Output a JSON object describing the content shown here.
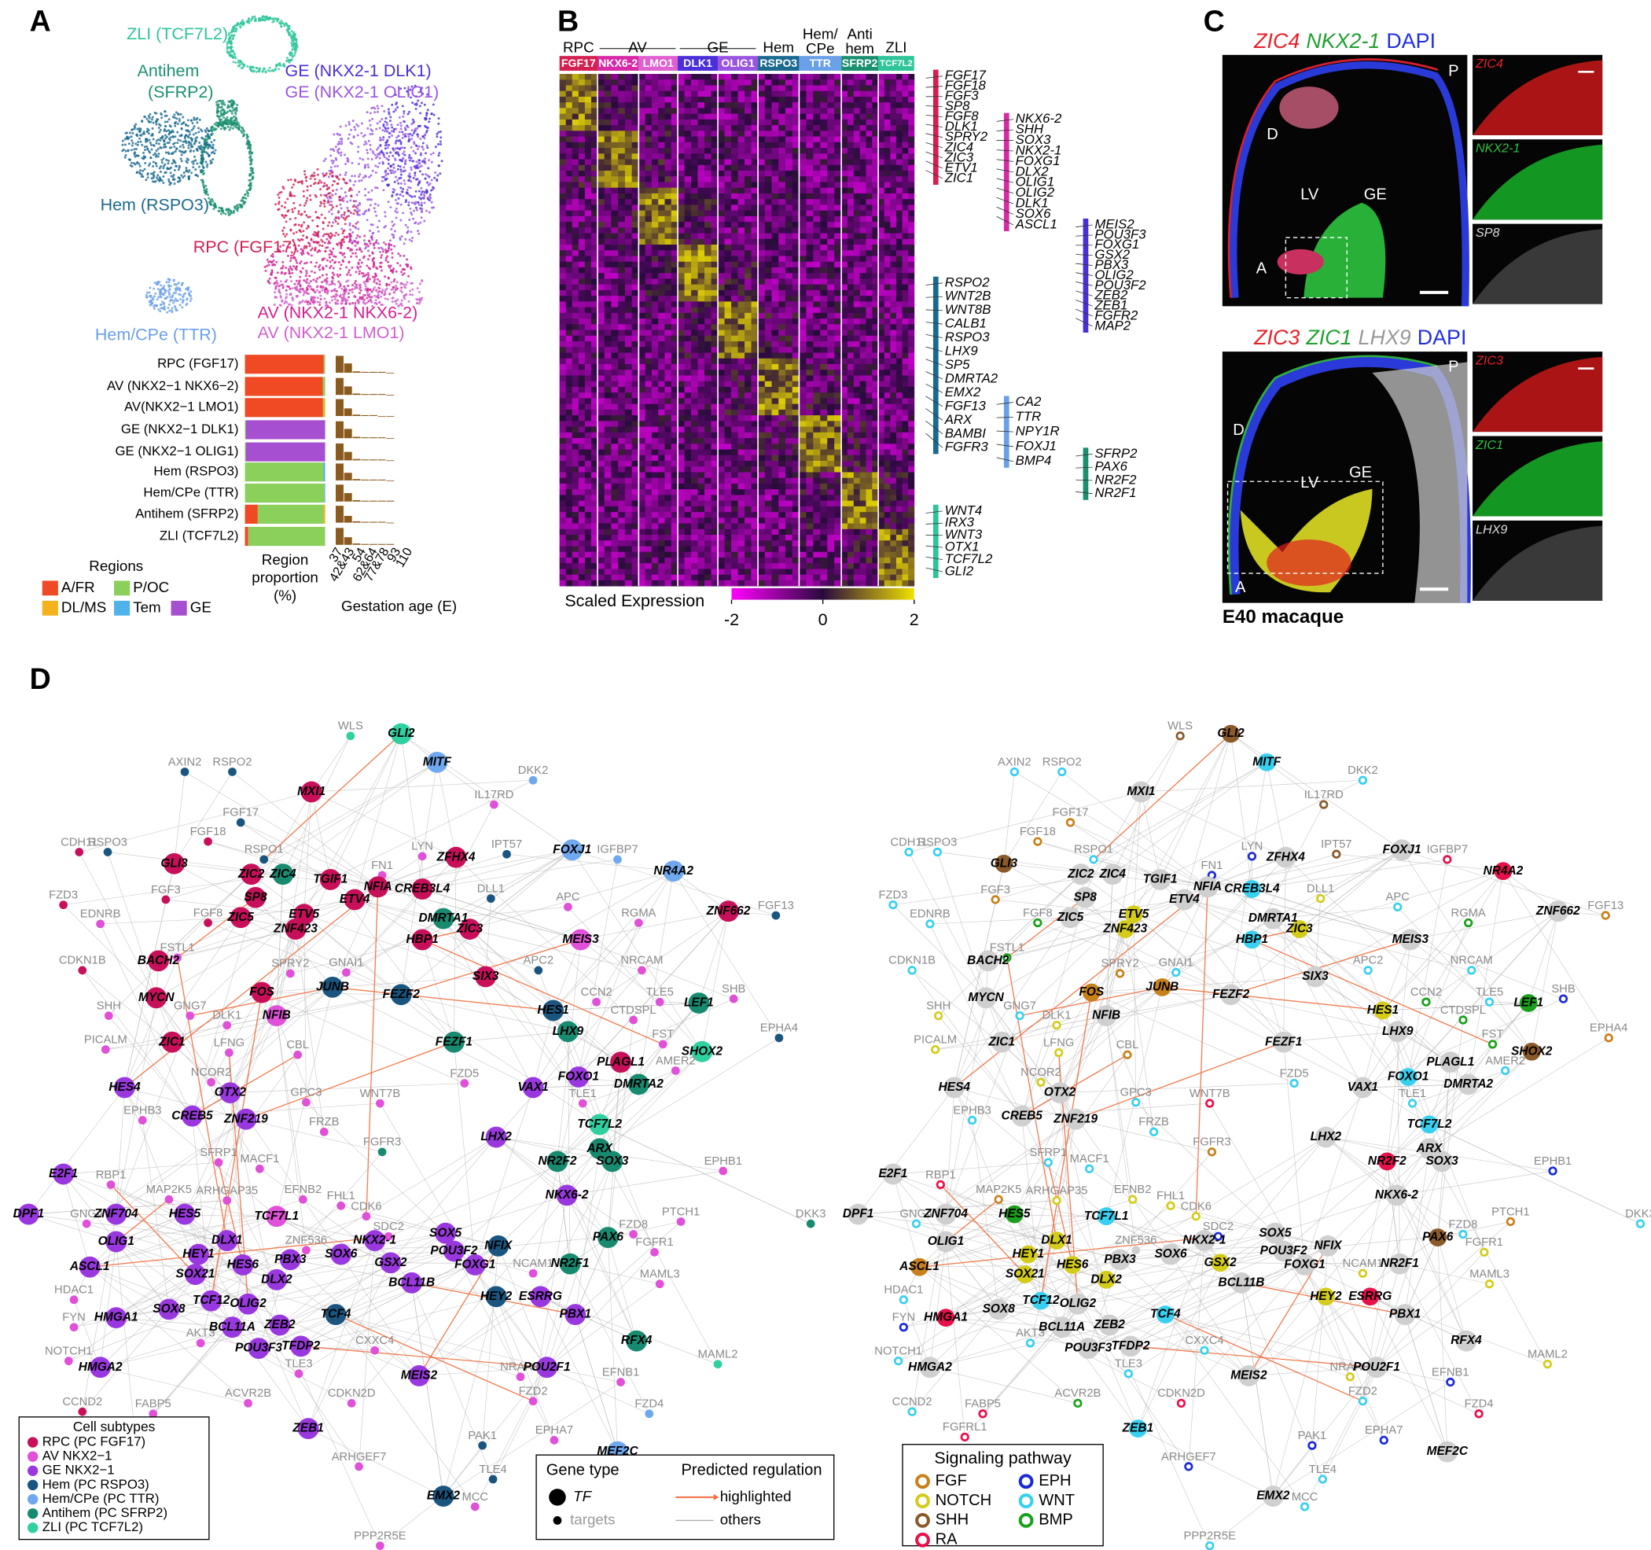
{
  "panel_labels": [
    "A",
    "B",
    "C",
    "D"
  ],
  "panel_a": {
    "umap_labels": [
      {
        "text": "ZLI (TCF7L2)",
        "color": "#2ec59a"
      },
      {
        "text": "Antihem",
        "color": "#1a9070"
      },
      {
        "text": "(SFRP2)",
        "color": "#1a9070"
      },
      {
        "text": "GE (NKX2-1 DLK1)",
        "color": "#4b2fd8"
      },
      {
        "text": "GE (NKX2-1 OLIG1)",
        "color": "#9a55e0"
      },
      {
        "text": "Hem (RSPO3)",
        "color": "#1a6a90"
      },
      {
        "text": "RPC (FGF17)",
        "color": "#d02050"
      },
      {
        "text": "Hem/CPe (TTR)",
        "color": "#6aa0e8"
      },
      {
        "text": "AV (NKX2-1 NKX6-2)",
        "color": "#d02090"
      },
      {
        "text": "AV (NKX2-1 LMO1)",
        "color": "#d060d0"
      }
    ],
    "region_chart": {
      "type": "bar",
      "categories": [
        "RPC (FGF17)",
        "AV (NKX2−1 NKX6−2)",
        "AV(NKX2−1 LMO1)",
        "GE (NKX2−1 DLK1)",
        "GE (NKX2−1 OLIG1)",
        "Hem (RSPO3)",
        "Hem/CPe (TTR)",
        "Antihem (SFRP2)",
        "ZLI (TCF7L2)"
      ],
      "series": [
        {
          "name": "A/FR",
          "color": "#f04a24",
          "values": [
            98,
            97,
            97,
            0,
            0,
            0,
            0,
            16,
            4
          ]
        },
        {
          "name": "P/OC",
          "color": "#8bd05b",
          "values": [
            2,
            3,
            1,
            1,
            1,
            98,
            99,
            82,
            96
          ]
        },
        {
          "name": "DL/MS",
          "color": "#f5b21c",
          "values": [
            0,
            0,
            2,
            0,
            0,
            0,
            0,
            2,
            0
          ]
        },
        {
          "name": "Tem",
          "color": "#4fb2e8",
          "values": [
            0,
            0,
            0,
            0,
            0,
            2,
            1,
            0,
            0
          ]
        },
        {
          "name": "GE",
          "color": "#a64fd0",
          "values": [
            0,
            0,
            0,
            99,
            99,
            0,
            0,
            0,
            0
          ]
        }
      ],
      "xlim": [
        0,
        100
      ],
      "legend_title": "Regions",
      "xlabel": [
        "Region",
        "proportion",
        "(%)"
      ]
    },
    "age_chart": {
      "type": "bar",
      "color": "#8b5a1e",
      "categories": [
        "37",
        "42&43",
        "54",
        "62&64",
        "77&78",
        "93",
        "110"
      ],
      "ylim": [
        0,
        1
      ],
      "values": [
        [
          1,
          0.55,
          0.08,
          0.05,
          0.05,
          0.05,
          0
        ],
        [
          1,
          0.5,
          0.08,
          0.05,
          0.05,
          0.05,
          0
        ],
        [
          1,
          0.45,
          0.08,
          0.05,
          0.05,
          0,
          0
        ],
        [
          1,
          0.55,
          0.08,
          0.05,
          0.05,
          0.05,
          0
        ],
        [
          1,
          0.5,
          0.08,
          0.05,
          0.05,
          0.05,
          0
        ],
        [
          1,
          0.45,
          0.08,
          0.05,
          0.05,
          0.05,
          0
        ],
        [
          1,
          0.5,
          0.08,
          0.05,
          0.05,
          0.05,
          0.05
        ],
        [
          1,
          0.4,
          0.08,
          0.05,
          0.05,
          0.05,
          0
        ],
        [
          1,
          0.45,
          0.08,
          0.05,
          0.05,
          0.05,
          0.05
        ]
      ],
      "xlabel": "Gestation age (E)"
    }
  },
  "panel_b": {
    "group_headers": [
      [
        "RPC"
      ],
      [
        "AV"
      ],
      [
        "GE"
      ],
      [
        "Hem"
      ],
      [
        "Hem/",
        "CPe"
      ],
      [
        "Anti",
        "hem"
      ],
      [
        "ZLI"
      ]
    ],
    "clusters": [
      {
        "label": "FGF17",
        "color": "#d42050"
      },
      {
        "label": "NKX6-2",
        "color": "#d62aa6"
      },
      {
        "label": "LMO1",
        "color": "#e060d0"
      },
      {
        "label": "DLK1",
        "color": "#4b2fd8"
      },
      {
        "label": "OLIG1",
        "color": "#9a55e0"
      },
      {
        "label": "RSPO3",
        "color": "#1a6a90"
      },
      {
        "label": "TTR",
        "color": "#6aa0e8"
      },
      {
        "label": "SFRP2",
        "color": "#1a9070"
      },
      {
        "label": "TCF7L2",
        "color": "#2ec59a"
      }
    ],
    "colorbar": {
      "label": "Scaled Expression",
      "lim": [
        -2,
        2
      ],
      "ticks": [
        -2,
        0,
        2
      ]
    },
    "gene_groups": [
      {
        "color": "#d42050",
        "genes": [
          "FGF17",
          "FGF18",
          "FGF3",
          "SP8",
          "FGF8",
          "DLK1",
          "SPRY2",
          "ZIC4",
          "ZIC3",
          "ETV1",
          "ZIC1"
        ]
      },
      {
        "color": "#d62aa6",
        "genes": [
          "NKX6-2",
          "SHH",
          "SOX3",
          "NKX2-1",
          "FOXG1",
          "DLX2",
          "OLIG1",
          "OLIG2",
          "DLK1",
          "SOX6",
          "ASCL1"
        ]
      },
      {
        "color": "#4b2fd8",
        "genes": [
          "MEIS2",
          "POU3F3",
          "FOXG1",
          "GSX2",
          "PBX3",
          "OLIG2",
          "POU3F2",
          "ZEB2",
          "ZEB1",
          "FGFR2",
          "MAP2"
        ]
      },
      {
        "color": "#1a6a90",
        "genes": [
          "RSPO2",
          "WNT2B",
          "WNT8B",
          "CALB1",
          "RSPO3",
          "LHX9",
          "SP5",
          "DMRTA2",
          "EMX2",
          "FGF13",
          "ARX",
          "BAMBI",
          "FGFR3"
        ]
      },
      {
        "color": "#6aa0e8",
        "genes": [
          "CA2",
          "TTR",
          "NPY1R",
          "FOXJ1",
          "BMP4"
        ]
      },
      {
        "color": "#1a9070",
        "genes": [
          "SFRP2",
          "PAX6",
          "NR2F2",
          "NR2F1"
        ]
      },
      {
        "color": "#2ec59a",
        "genes": [
          "WNT4",
          "IRX3",
          "WNT3",
          "OTX1",
          "TCF7L2",
          "GLI2"
        ]
      }
    ]
  },
  "panel_c": {
    "top": {
      "title_parts": [
        {
          "text": "ZIC4",
          "color": "#e8202a"
        },
        {
          "text": "NKX2-1",
          "color": "#20a030"
        },
        {
          "text": "DAPI",
          "color": "#2030e0"
        }
      ],
      "region_labels": [
        "D",
        "P",
        "LV",
        "GE",
        "A"
      ],
      "insets": [
        {
          "text": "ZIC4",
          "color": "#e8202a"
        },
        {
          "text": "NKX2-1",
          "color": "#30c040"
        },
        {
          "text": "SP8",
          "color": "#dddddd"
        }
      ]
    },
    "bottom": {
      "title_parts": [
        {
          "text": "ZIC3",
          "color": "#e8202a"
        },
        {
          "text": "ZIC1",
          "color": "#20a030"
        },
        {
          "text": "LHX9",
          "color": "#999999"
        },
        {
          "text": "DAPI",
          "color": "#2030e0"
        }
      ],
      "region_labels": [
        "D",
        "P",
        "LV",
        "GE",
        "A"
      ],
      "insets": [
        {
          "text": "ZIC3",
          "color": "#e8202a"
        },
        {
          "text": "ZIC1",
          "color": "#30c040"
        },
        {
          "text": "LHX9",
          "color": "#dddddd"
        }
      ]
    },
    "caption": "E40 macaque"
  },
  "panel_d": {
    "cell_subtypes": {
      "title": "Cell subtypes",
      "items": [
        {
          "label": "RPC (PC FGF17)",
          "color": "#c8105a"
        },
        {
          "label": "AV NKX2−1",
          "color": "#e050d8"
        },
        {
          "label": "GE NKX2−1",
          "color": "#9a38e0"
        },
        {
          "label": "Hem (PC RSPO3)",
          "color": "#1a5580"
        },
        {
          "label": "Hem/CPe (PC TTR)",
          "color": "#70a8f0"
        },
        {
          "label": "Antihem (PC SFRP2)",
          "color": "#188a70"
        },
        {
          "label": "ZLI (PC TCF7L2)",
          "color": "#30d0a0"
        }
      ]
    },
    "gene_type": {
      "title": "Gene type",
      "items": [
        "TF",
        "targets"
      ]
    },
    "regulation": {
      "title": "Predicted regulation",
      "items": [
        "highlighted",
        "others"
      ]
    },
    "pathways": {
      "title": "Signaling pathway",
      "items": [
        {
          "label": "FGF",
          "color": "#c8801a"
        },
        {
          "label": "NOTCH",
          "color": "#d4cc1a"
        },
        {
          "label": "SHH",
          "color": "#8a5a2a"
        },
        {
          "label": "RA",
          "color": "#e8104a"
        },
        {
          "label": "EPH",
          "color": "#1a2ad8"
        },
        {
          "label": "WNT",
          "color": "#38d0f0"
        },
        {
          "label": "BMP",
          "color": "#1aa01a"
        }
      ]
    },
    "genes": [
      "WLS",
      "GLI2",
      "AXIN2",
      "RSPO2",
      "MITF",
      "DKK2",
      "MXI1",
      "IL17RD",
      "FGF17",
      "FGF18",
      "RSPO1",
      "CDH11",
      "RSPO3",
      "LYN",
      "IPT57",
      "FOXJ1",
      "IGFBP7",
      "NR4A2",
      "FN1",
      "ZFHX4",
      "GLI3",
      "ZIC2",
      "ZIC4",
      "FGF3",
      "TGIF1",
      "NFIA",
      "ETV4",
      "CREB3L4",
      "DLL1",
      "FZD3",
      "SP8",
      "APC",
      "EDNRB",
      "FGF8",
      "ZIC5",
      "ETV5",
      "DMRTA1",
      "ZIC3",
      "RGMA",
      "ZNF423",
      "ZNF662",
      "FGF13",
      "FSTL1",
      "HBP1",
      "SPRY2",
      "GNAI1",
      "APC2",
      "MEIS3",
      "NRCAM",
      "CDKN1B",
      "BACH2",
      "SIX3",
      "FOS",
      "JUNB",
      "FEZF2",
      "SHB",
      "CCN2",
      "TLE5",
      "LEF1",
      "MYCN",
      "GNG7",
      "SHH",
      "DLK1",
      "NFIB",
      "HES1",
      "CTDSPL",
      "EPHA4",
      "LHX9",
      "FST",
      "PICALM",
      "ZIC1",
      "LFNG",
      "CBL",
      "FEZF1",
      "SHOX2",
      "AMER2",
      "PLAGL1",
      "FZD5",
      "FOXO1",
      "NCOR2",
      "HES4",
      "OTX2",
      "GPC3",
      "WNT7B",
      "VAX1",
      "TLE1",
      "DMRTA2",
      "EPHB3",
      "CREB5",
      "ZNF219",
      "FRZB",
      "TCF7L2",
      "LHX2",
      "ARX",
      "SOX3",
      "NR2F2",
      "FGFR3",
      "SFRP1",
      "MACF1",
      "EPHB1",
      "E2F1",
      "RBP1",
      "MAP2K5",
      "ARHGAP35",
      "EFNB2",
      "FHL1",
      "CDK6",
      "NKX6-2",
      "DKK3",
      "PTCH1",
      "DPF1",
      "GNG4",
      "ZNF704",
      "HES5",
      "TCF7L1",
      "SDC2",
      "FZD8",
      "SOX5",
      "PAX6",
      "FGFR1",
      "OLIG1",
      "DLX1",
      "ZNF536",
      "NKX2-1",
      "NFIX",
      "HEY1",
      "POU3F2",
      "SOX6",
      "PBX3",
      "FOXG1",
      "GSX2",
      "NCAM1",
      "NR2F1",
      "MAML3",
      "ASCL1",
      "HES6",
      "HDAC1",
      "SOX21",
      "DLX2",
      "BCL11B",
      "HEY2",
      "ESRRG",
      "PBX1",
      "FYN",
      "HMGA1",
      "TCF12",
      "OLIG2",
      "SOX8",
      "TCF4",
      "AKT3",
      "BCL11A",
      "ZEB2",
      "CXXC4",
      "TFDP2",
      "POU3F3",
      "TLE3",
      "RFX4",
      "NOTCH1",
      "HMGA2",
      "NRARP",
      "POU2F1",
      "MEIS2",
      "MAML2",
      "EFNB1",
      "CCND2",
      "FZD2",
      "ACVR2B",
      "CDKN2D",
      "FABP5",
      "ZEB1",
      "FZD4",
      "FGFRL1",
      "PAK1",
      "EPHA7",
      "MEF2C",
      "ARHGEF7",
      "TLE4",
      "EMX2",
      "MCC",
      "PPP2R5E"
    ]
  }
}
